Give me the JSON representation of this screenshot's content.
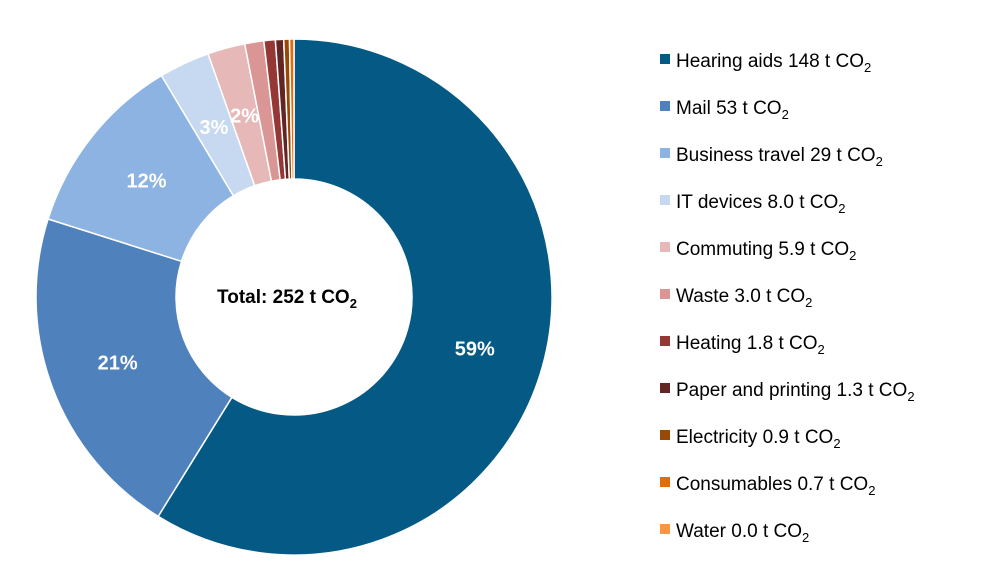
{
  "chart_data": {
    "type": "pie",
    "variant": "donut",
    "center_label": {
      "text": "Total: 252 t CO",
      "sub": "2"
    },
    "slices": [
      {
        "name": "Hearing aids",
        "value": 148,
        "unit": "t CO",
        "unit_sub": "2",
        "value_label": "148",
        "pct_label": "59%",
        "color": "#045A84"
      },
      {
        "name": "Mail",
        "value": 53,
        "unit": "t CO",
        "unit_sub": "2",
        "value_label": "53",
        "pct_label": "21%",
        "color": "#4F81BD"
      },
      {
        "name": "Business travel",
        "value": 29,
        "unit": "t CO",
        "unit_sub": "2",
        "value_label": "29",
        "pct_label": "12%",
        "color": "#8DB3E2"
      },
      {
        "name": "IT devices",
        "value": 8.0,
        "unit": "t CO",
        "unit_sub": "2",
        "value_label": "8.0",
        "pct_label": "3%",
        "color": "#C6D9F1"
      },
      {
        "name": "Commuting",
        "value": 5.9,
        "unit": "t CO",
        "unit_sub": "2",
        "value_label": "5.9",
        "pct_label": "2%",
        "color": "#E6B9B8"
      },
      {
        "name": "Waste",
        "value": 3.0,
        "unit": "t CO",
        "unit_sub": "2",
        "value_label": "3.0",
        "pct_label": "",
        "color": "#D99694"
      },
      {
        "name": "Heating",
        "value": 1.8,
        "unit": "t CO",
        "unit_sub": "2",
        "value_label": "1.8",
        "pct_label": "",
        "color": "#953735"
      },
      {
        "name": "Paper and printing",
        "value": 1.3,
        "unit": "t CO",
        "unit_sub": "2",
        "value_label": "1.3",
        "pct_label": "",
        "color": "#632523"
      },
      {
        "name": "Electricity",
        "value": 0.9,
        "unit": "t CO",
        "unit_sub": "2",
        "value_label": "0.9",
        "pct_label": "",
        "color": "#984807"
      },
      {
        "name": "Consumables",
        "value": 0.7,
        "unit": "t CO",
        "unit_sub": "2",
        "value_label": "0.7",
        "pct_label": "",
        "color": "#E36C09"
      },
      {
        "name": "Water",
        "value": 0.0,
        "unit": "t CO",
        "unit_sub": "2",
        "value_label": "0.0",
        "pct_label": "",
        "color": "#F79646"
      }
    ],
    "legend_position": "right"
  }
}
